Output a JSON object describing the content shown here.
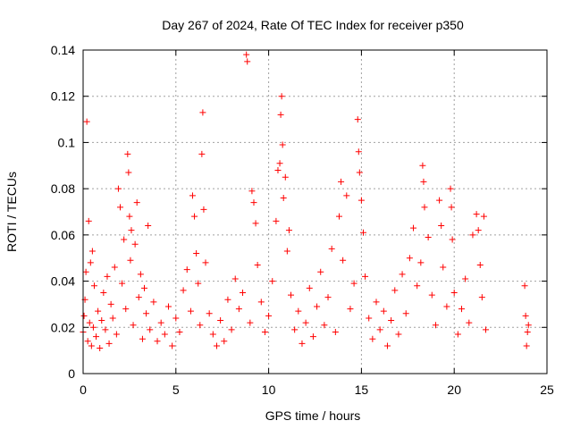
{
  "chart_data": {
    "type": "scatter",
    "title": "Day 267 of 2024, Rate Of TEC Index for receiver p350",
    "xlabel": "GPS time / hours",
    "ylabel": "ROTI / TECUs",
    "xlim": [
      0,
      25
    ],
    "ylim": [
      0,
      0.14
    ],
    "x_ticks": [
      0,
      5,
      10,
      15,
      20,
      25
    ],
    "y_ticks": [
      0,
      0.02,
      0.04,
      0.06,
      0.08,
      0.1,
      0.12,
      0.14
    ],
    "x_tick_labels": [
      "0",
      "5",
      "10",
      "15",
      "20",
      "25"
    ],
    "y_tick_labels": [
      "0",
      "0.02",
      "0.04",
      "0.06",
      "0.08",
      "0.1",
      "0.12",
      "0.14"
    ],
    "grid": true,
    "marker": "+",
    "color": "#ff0000",
    "series": [
      {
        "values": [
          [
            0.0,
            0.018
          ],
          [
            0.05,
            0.025
          ],
          [
            0.1,
            0.032
          ],
          [
            0.15,
            0.044
          ],
          [
            0.2,
            0.109
          ],
          [
            0.25,
            0.014
          ],
          [
            0.3,
            0.066
          ],
          [
            0.35,
            0.022
          ],
          [
            0.4,
            0.048
          ],
          [
            0.45,
            0.012
          ],
          [
            0.5,
            0.053
          ],
          [
            0.55,
            0.02
          ],
          [
            0.6,
            0.038
          ],
          [
            0.7,
            0.016
          ],
          [
            0.8,
            0.027
          ],
          [
            0.9,
            0.011
          ],
          [
            1.0,
            0.023
          ],
          [
            1.1,
            0.035
          ],
          [
            1.2,
            0.019
          ],
          [
            1.3,
            0.042
          ],
          [
            1.4,
            0.013
          ],
          [
            1.5,
            0.03
          ],
          [
            1.6,
            0.024
          ],
          [
            1.7,
            0.046
          ],
          [
            1.8,
            0.017
          ],
          [
            1.9,
            0.08
          ],
          [
            2.0,
            0.072
          ],
          [
            2.1,
            0.039
          ],
          [
            2.2,
            0.058
          ],
          [
            2.3,
            0.028
          ],
          [
            2.4,
            0.095
          ],
          [
            2.45,
            0.087
          ],
          [
            2.5,
            0.068
          ],
          [
            2.55,
            0.049
          ],
          [
            2.6,
            0.062
          ],
          [
            2.7,
            0.021
          ],
          [
            2.8,
            0.056
          ],
          [
            2.9,
            0.074
          ],
          [
            3.0,
            0.033
          ],
          [
            3.1,
            0.043
          ],
          [
            3.2,
            0.015
          ],
          [
            3.3,
            0.037
          ],
          [
            3.4,
            0.026
          ],
          [
            3.5,
            0.064
          ],
          [
            3.6,
            0.019
          ],
          [
            3.8,
            0.031
          ],
          [
            4.0,
            0.014
          ],
          [
            4.2,
            0.022
          ],
          [
            4.4,
            0.017
          ],
          [
            4.6,
            0.029
          ],
          [
            4.8,
            0.012
          ],
          [
            5.0,
            0.024
          ],
          [
            5.2,
            0.018
          ],
          [
            5.4,
            0.036
          ],
          [
            5.6,
            0.045
          ],
          [
            5.8,
            0.027
          ],
          [
            5.9,
            0.077
          ],
          [
            6.0,
            0.068
          ],
          [
            6.1,
            0.052
          ],
          [
            6.2,
            0.039
          ],
          [
            6.3,
            0.021
          ],
          [
            6.4,
            0.095
          ],
          [
            6.45,
            0.113
          ],
          [
            6.5,
            0.071
          ],
          [
            6.6,
            0.048
          ],
          [
            6.8,
            0.026
          ],
          [
            7.0,
            0.017
          ],
          [
            7.2,
            0.012
          ],
          [
            7.4,
            0.023
          ],
          [
            7.6,
            0.014
          ],
          [
            7.8,
            0.032
          ],
          [
            8.0,
            0.019
          ],
          [
            8.2,
            0.041
          ],
          [
            8.4,
            0.028
          ],
          [
            8.6,
            0.035
          ],
          [
            8.8,
            0.138
          ],
          [
            8.85,
            0.135
          ],
          [
            9.0,
            0.022
          ],
          [
            9.1,
            0.079
          ],
          [
            9.2,
            0.074
          ],
          [
            9.3,
            0.065
          ],
          [
            9.4,
            0.047
          ],
          [
            9.6,
            0.031
          ],
          [
            9.8,
            0.018
          ],
          [
            10.0,
            0.025
          ],
          [
            10.2,
            0.04
          ],
          [
            10.4,
            0.066
          ],
          [
            10.5,
            0.088
          ],
          [
            10.6,
            0.091
          ],
          [
            10.65,
            0.112
          ],
          [
            10.7,
            0.12
          ],
          [
            10.75,
            0.099
          ],
          [
            10.8,
            0.076
          ],
          [
            10.9,
            0.085
          ],
          [
            11.0,
            0.053
          ],
          [
            11.1,
            0.062
          ],
          [
            11.2,
            0.034
          ],
          [
            11.4,
            0.019
          ],
          [
            11.6,
            0.027
          ],
          [
            11.8,
            0.013
          ],
          [
            12.0,
            0.022
          ],
          [
            12.2,
            0.037
          ],
          [
            12.4,
            0.016
          ],
          [
            12.6,
            0.029
          ],
          [
            12.8,
            0.044
          ],
          [
            13.0,
            0.021
          ],
          [
            13.2,
            0.033
          ],
          [
            13.4,
            0.054
          ],
          [
            13.6,
            0.018
          ],
          [
            13.8,
            0.068
          ],
          [
            13.9,
            0.083
          ],
          [
            14.0,
            0.049
          ],
          [
            14.2,
            0.077
          ],
          [
            14.4,
            0.028
          ],
          [
            14.6,
            0.039
          ],
          [
            14.8,
            0.11
          ],
          [
            14.85,
            0.096
          ],
          [
            14.9,
            0.087
          ],
          [
            15.0,
            0.075
          ],
          [
            15.1,
            0.061
          ],
          [
            15.2,
            0.042
          ],
          [
            15.4,
            0.024
          ],
          [
            15.6,
            0.015
          ],
          [
            15.8,
            0.031
          ],
          [
            16.0,
            0.019
          ],
          [
            16.2,
            0.027
          ],
          [
            16.4,
            0.012
          ],
          [
            16.6,
            0.023
          ],
          [
            16.8,
            0.036
          ],
          [
            17.0,
            0.017
          ],
          [
            17.2,
            0.043
          ],
          [
            17.4,
            0.026
          ],
          [
            17.6,
            0.05
          ],
          [
            17.8,
            0.063
          ],
          [
            18.0,
            0.038
          ],
          [
            18.2,
            0.048
          ],
          [
            18.3,
            0.09
          ],
          [
            18.35,
            0.083
          ],
          [
            18.4,
            0.072
          ],
          [
            18.6,
            0.059
          ],
          [
            18.8,
            0.034
          ],
          [
            19.0,
            0.021
          ],
          [
            19.2,
            0.075
          ],
          [
            19.3,
            0.064
          ],
          [
            19.4,
            0.046
          ],
          [
            19.6,
            0.029
          ],
          [
            19.8,
            0.08
          ],
          [
            19.85,
            0.072
          ],
          [
            19.9,
            0.058
          ],
          [
            20.0,
            0.035
          ],
          [
            20.2,
            0.017
          ],
          [
            20.4,
            0.028
          ],
          [
            20.6,
            0.041
          ],
          [
            20.8,
            0.022
          ],
          [
            21.0,
            0.06
          ],
          [
            21.2,
            0.069
          ],
          [
            21.3,
            0.062
          ],
          [
            21.4,
            0.047
          ],
          [
            21.5,
            0.033
          ],
          [
            21.6,
            0.068
          ],
          [
            21.7,
            0.019
          ],
          [
            23.8,
            0.038
          ],
          [
            23.85,
            0.025
          ],
          [
            23.9,
            0.012
          ],
          [
            23.95,
            0.018
          ],
          [
            24.0,
            0.021
          ]
        ]
      }
    ]
  }
}
